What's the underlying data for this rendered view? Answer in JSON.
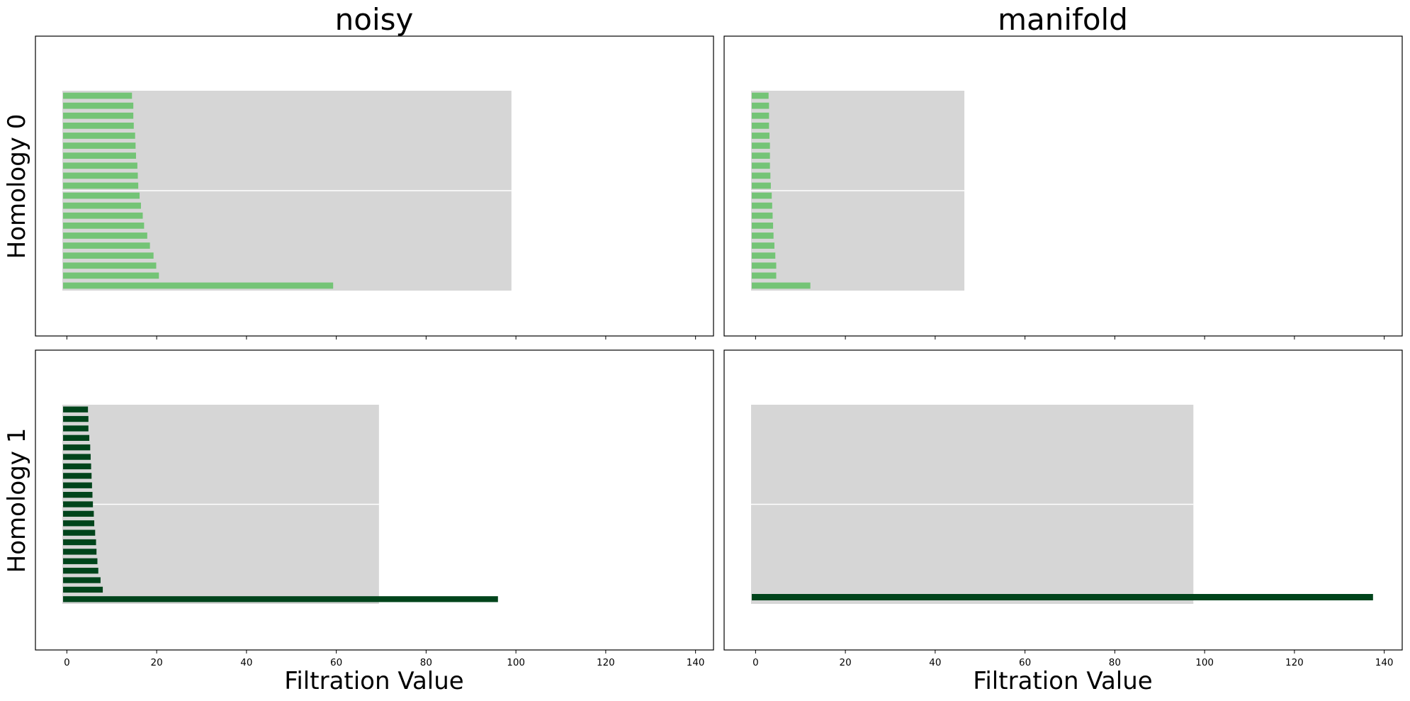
{
  "colors": {
    "h0_bar": "#74c476",
    "h1_bar": "#00441b",
    "background_bar": "#d6d6d6",
    "separator": "#ffffff"
  },
  "x_ticks": [
    "0",
    "20",
    "40",
    "60",
    "80",
    "100",
    "120",
    "140"
  ],
  "chart_data": [
    {
      "type": "bar",
      "orientation": "horizontal",
      "title": "noisy",
      "ylabel": "Homology 0",
      "xlabel": "",
      "xlim": [
        -7,
        144
      ],
      "x_ticks_labels_shown": false,
      "background_bar_max": 99,
      "bars_top_to_bottom": [
        14.5,
        14.8,
        14.8,
        14.9,
        15.2,
        15.3,
        15.4,
        15.7,
        15.8,
        15.9,
        16.2,
        16.5,
        16.9,
        17.2,
        17.9,
        18.5,
        19.3,
        19.9,
        20.5,
        59.3
      ],
      "series_name": "",
      "grid": false
    },
    {
      "type": "bar",
      "orientation": "horizontal",
      "title": "manifold",
      "ylabel": "",
      "xlabel": "",
      "xlim": [
        -7,
        144
      ],
      "x_ticks_labels_shown": false,
      "background_bar_max": 46.5,
      "bars_top_to_bottom": [
        2.9,
        3.0,
        3.0,
        3.0,
        3.1,
        3.2,
        3.2,
        3.2,
        3.3,
        3.4,
        3.6,
        3.7,
        3.8,
        3.9,
        4.0,
        4.2,
        4.4,
        4.6,
        4.6,
        12.2
      ],
      "series_name": "",
      "grid": false
    },
    {
      "type": "bar",
      "orientation": "horizontal",
      "title": "",
      "ylabel": "Homology 1",
      "xlabel": "Filtration Value",
      "xlim": [
        -7,
        144
      ],
      "x_ticks_labels_shown": true,
      "background_bar_max": 69.5,
      "bars_top_to_bottom": [
        4.7,
        4.8,
        4.8,
        5.0,
        5.2,
        5.3,
        5.4,
        5.5,
        5.6,
        5.7,
        5.8,
        6.0,
        6.1,
        6.3,
        6.5,
        6.6,
        6.8,
        7.0,
        7.5,
        8.0,
        96.0
      ],
      "series_name": "",
      "grid": false
    },
    {
      "type": "bar",
      "orientation": "horizontal",
      "title": "",
      "ylabel": "",
      "xlabel": "Filtration Value",
      "xlim": [
        -7,
        144
      ],
      "x_ticks_labels_shown": true,
      "background_bar_max": 97.5,
      "bars_top_to_bottom": [
        137.5
      ],
      "series_name": "",
      "grid": false
    }
  ]
}
